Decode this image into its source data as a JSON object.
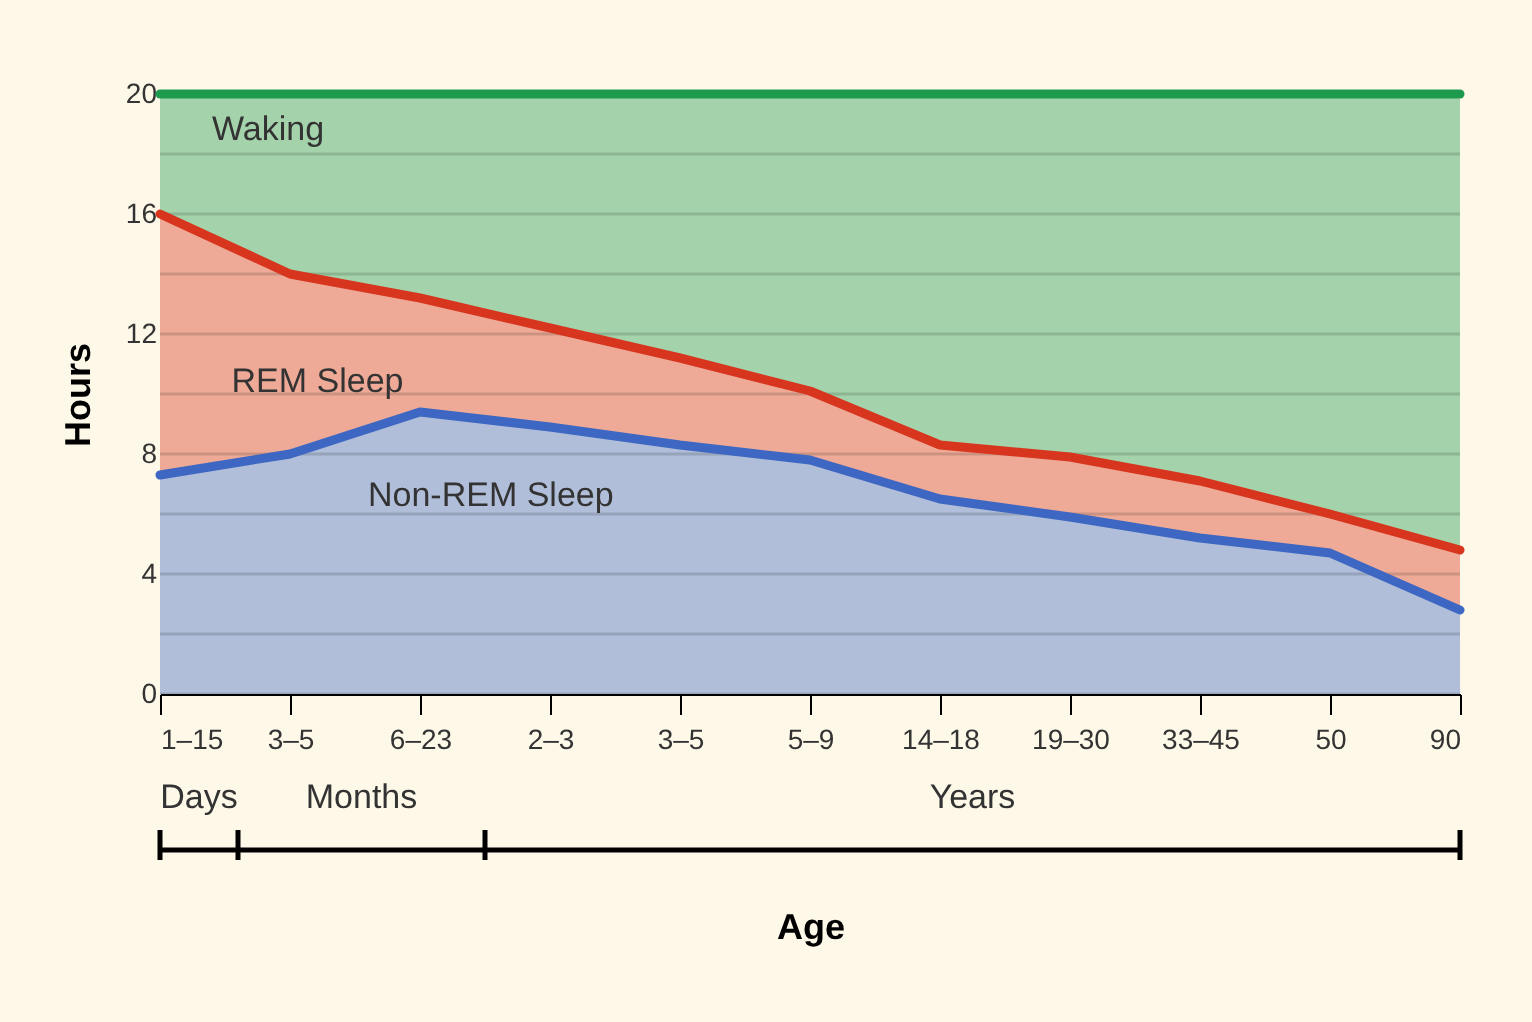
{
  "chart_data": {
    "type": "area",
    "xlabel": "Age",
    "ylabel": "Hours",
    "categories": [
      "1–15",
      "3–5",
      "6–23",
      "2–3",
      "3–5",
      "5–9",
      "14–18",
      "19–30",
      "33–45",
      "50",
      "90"
    ],
    "series": [
      {
        "name": "Waking",
        "color": "#1e9a4f",
        "values": [
          20,
          20,
          20,
          20,
          20,
          20,
          20,
          20,
          20,
          20,
          20
        ]
      },
      {
        "name": "REM Sleep",
        "color": "#d8351f",
        "values": [
          16,
          14,
          13.2,
          12.2,
          11.2,
          10.1,
          8.3,
          7.9,
          7.1,
          6,
          4.8
        ]
      },
      {
        "name": "Non-REM Sleep",
        "color": "#3d67c2",
        "values": [
          7.3,
          8,
          9.4,
          8.9,
          8.3,
          7.8,
          6.5,
          5.9,
          5.2,
          4.7,
          2.8
        ]
      }
    ],
    "ylim": [
      0,
      20
    ],
    "yticks": [
      0,
      {
        "value": 2,
        "label": null
      },
      4,
      {
        "value": 6,
        "label": null
      },
      8,
      {
        "value": 10,
        "label": null
      },
      12,
      {
        "value": 14,
        "label": null
      },
      16,
      {
        "value": 18,
        "label": null
      },
      20
    ],
    "grid": "y",
    "annotations": [
      "Days",
      "Months",
      "Years"
    ]
  }
}
